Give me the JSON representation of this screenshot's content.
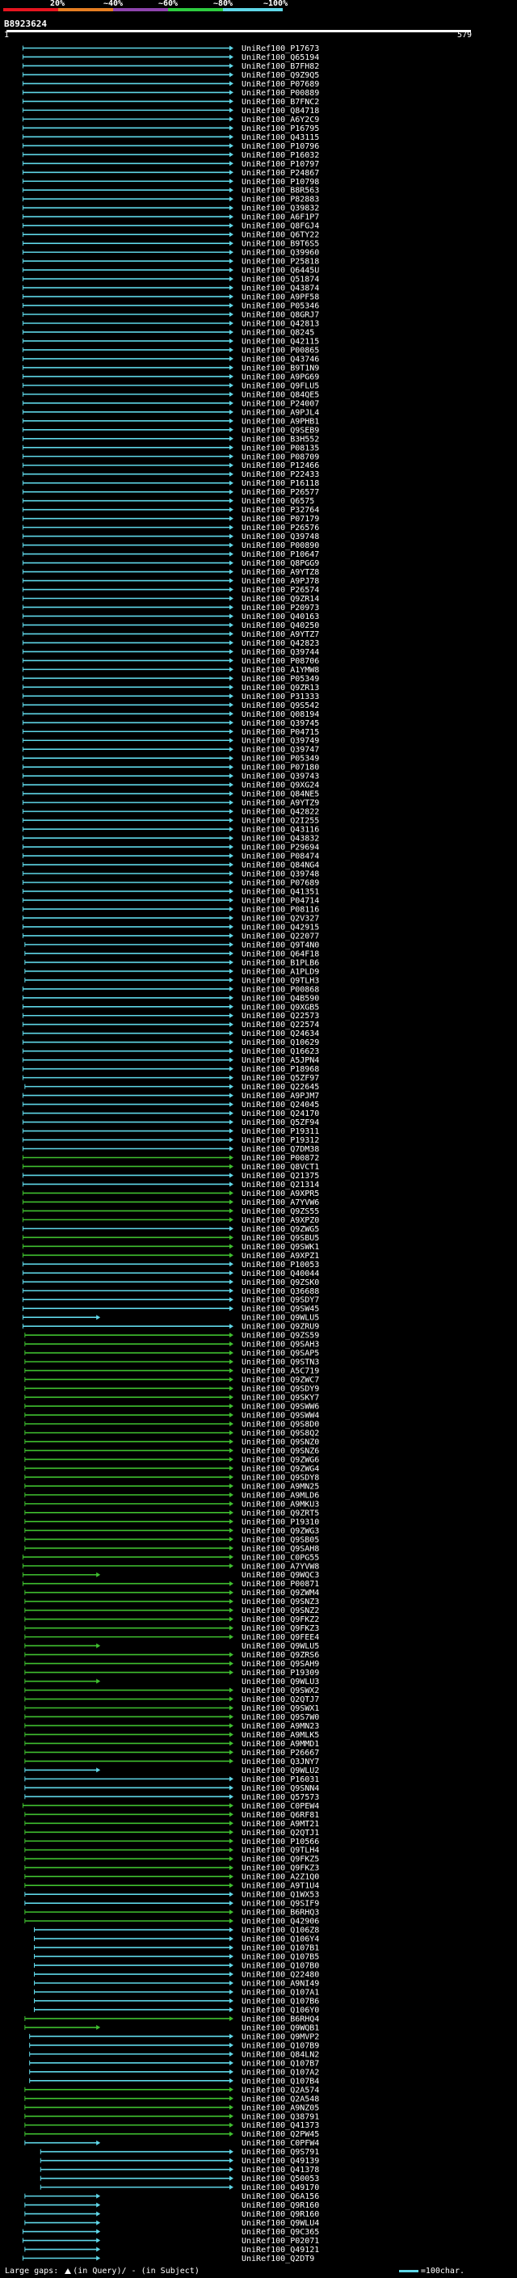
{
  "legend": {
    "marks": [
      "20%",
      "~40%",
      "~60%",
      "~80%",
      "~100%"
    ],
    "colors": [
      "#e6151f",
      "#e67e22",
      "#8e44ad",
      "#2ecc40",
      "#5fd7e8"
    ]
  },
  "query": {
    "id": "B8923624",
    "start": "1",
    "end": "579"
  },
  "footer": {
    "large_gaps_label": "Large gaps:",
    "in_query": "(in Query)",
    "in_subject": "(in Subject)",
    "scale": "=100char."
  },
  "hit_colors": {
    "cyan": "#5fd7e8",
    "green": "#3fbf2f",
    "gapmark": "#cc4444"
  },
  "hits": [
    [
      "UniRef100_P17673",
      43,
      579,
      "c"
    ],
    [
      "UniRef100_Q65194",
      43,
      579,
      "c"
    ],
    [
      "UniRef100_B7FH82",
      43,
      579,
      "c"
    ],
    [
      "UniRef100_Q9Z9Q5",
      43,
      579,
      "c"
    ],
    [
      "UniRef100_P07689",
      43,
      579,
      "c"
    ],
    [
      "UniRef100_P00889",
      43,
      579,
      "c"
    ],
    [
      "UniRef100_B7FNC2",
      43,
      579,
      "c"
    ],
    [
      "UniRef100_Q84718",
      43,
      579,
      "c"
    ],
    [
      "UniRef100_A6Y2C9",
      43,
      579,
      "c"
    ],
    [
      "UniRef100_P16795",
      43,
      579,
      "c"
    ],
    [
      "UniRef100_Q43115",
      43,
      579,
      "c"
    ],
    [
      "UniRef100_P10796",
      43,
      579,
      "c"
    ],
    [
      "UniRef100_P16032",
      43,
      579,
      "c"
    ],
    [
      "UniRef100_P10797",
      43,
      579,
      "c"
    ],
    [
      "UniRef100_P24867",
      43,
      579,
      "c"
    ],
    [
      "UniRef100_P10798",
      43,
      579,
      "c"
    ],
    [
      "UniRef100_B8R563",
      43,
      579,
      "c"
    ],
    [
      "UniRef100_P82883",
      43,
      579,
      "c"
    ],
    [
      "UniRef100_Q39832",
      43,
      579,
      "c"
    ],
    [
      "UniRef100_A6F1P7",
      43,
      579,
      "c"
    ],
    [
      "UniRef100_Q8FGJ4",
      43,
      579,
      "c"
    ],
    [
      "UniRef100_Q6TY22",
      43,
      579,
      "c"
    ],
    [
      "UniRef100_B9T6S5",
      43,
      579,
      "c"
    ],
    [
      "UniRef100_Q39960",
      43,
      579,
      "c"
    ],
    [
      "UniRef100_P25818",
      43,
      579,
      "c"
    ],
    [
      "UniRef100_Q6445U",
      43,
      579,
      "c"
    ],
    [
      "UniRef100_Q51874",
      43,
      579,
      "c"
    ],
    [
      "UniRef100_Q43874",
      43,
      579,
      "c"
    ],
    [
      "UniRef100_A9PF58",
      43,
      579,
      "c"
    ],
    [
      "UniRef100_P05346",
      43,
      579,
      "c"
    ],
    [
      "UniRef100_Q8GRJ7",
      43,
      579,
      "c"
    ],
    [
      "UniRef100_Q42813",
      43,
      579,
      "c"
    ],
    [
      "UniRef100_Q8245",
      43,
      579,
      "c"
    ],
    [
      "UniRef100_Q42115",
      43,
      579,
      "c"
    ],
    [
      "UniRef100_P00865",
      43,
      579,
      "c"
    ],
    [
      "UniRef100_Q43746",
      43,
      579,
      "c"
    ],
    [
      "UniRef100_B9T1N9",
      43,
      579,
      "c"
    ],
    [
      "UniRef100_A9PG69",
      43,
      579,
      "c"
    ],
    [
      "UniRef100_Q9FLU5",
      43,
      579,
      "c"
    ],
    [
      "UniRef100_Q84QE5",
      43,
      579,
      "c"
    ],
    [
      "UniRef100_P24007",
      43,
      579,
      "c"
    ],
    [
      "UniRef100_A9PJL4",
      43,
      579,
      "c"
    ],
    [
      "UniRef100_A9PHB1",
      43,
      579,
      "c"
    ],
    [
      "UniRef100_Q9SEB9",
      43,
      579,
      "c"
    ],
    [
      "UniRef100_B3H552",
      43,
      579,
      "c"
    ],
    [
      "UniRef100_P08135",
      43,
      579,
      "c"
    ],
    [
      "UniRef100_P08709",
      43,
      579,
      "c"
    ],
    [
      "UniRef100_P12466",
      43,
      579,
      "c"
    ],
    [
      "UniRef100_P22433",
      43,
      579,
      "c"
    ],
    [
      "UniRef100_P16118",
      43,
      579,
      "c"
    ],
    [
      "UniRef100_P26577",
      43,
      579,
      "c"
    ],
    [
      "UniRef100_Q6575",
      43,
      579,
      "c"
    ],
    [
      "UniRef100_P32764",
      43,
      579,
      "c"
    ],
    [
      "UniRef100_P07179",
      43,
      579,
      "c"
    ],
    [
      "UniRef100_P26576",
      43,
      579,
      "c"
    ],
    [
      "UniRef100_Q39748",
      43,
      579,
      "c"
    ],
    [
      "UniRef100_P00890",
      43,
      579,
      "c"
    ],
    [
      "UniRef100_P10647",
      43,
      579,
      "c"
    ],
    [
      "UniRef100_Q8PGG9",
      43,
      579,
      "c"
    ],
    [
      "UniRef100_A9YTZ8",
      43,
      579,
      "c"
    ],
    [
      "UniRef100_A9PJ78",
      43,
      579,
      "c"
    ],
    [
      "UniRef100_P26574",
      43,
      579,
      "c"
    ],
    [
      "UniRef100_Q9ZR14",
      43,
      579,
      "c"
    ],
    [
      "UniRef100_P20973",
      43,
      579,
      "c"
    ],
    [
      "UniRef100_Q40163",
      43,
      579,
      "c"
    ],
    [
      "UniRef100_Q40250",
      43,
      579,
      "c"
    ],
    [
      "UniRef100_A9YTZ7",
      43,
      579,
      "c"
    ],
    [
      "UniRef100_Q42823",
      43,
      579,
      "c"
    ],
    [
      "UniRef100_Q39744",
      43,
      579,
      "c"
    ],
    [
      "UniRef100_P08706",
      43,
      579,
      "c"
    ],
    [
      "UniRef100_A1YMW8",
      43,
      579,
      "c"
    ],
    [
      "UniRef100_P05349",
      43,
      579,
      "c"
    ],
    [
      "UniRef100_Q9ZR13",
      43,
      579,
      "c"
    ],
    [
      "UniRef100_P31333",
      43,
      579,
      "c"
    ],
    [
      "UniRef100_Q9S542",
      43,
      579,
      "c"
    ],
    [
      "UniRef100_Q08194",
      43,
      579,
      "c"
    ],
    [
      "UniRef100_Q39745",
      43,
      579,
      "c"
    ],
    [
      "UniRef100_P04715",
      43,
      579,
      "c"
    ],
    [
      "UniRef100_Q39749",
      43,
      579,
      "c"
    ],
    [
      "UniRef100_Q39747",
      43,
      579,
      "c"
    ],
    [
      "UniRef100_P05349",
      43,
      579,
      "c"
    ],
    [
      "UniRef100_P07180",
      43,
      579,
      "c"
    ],
    [
      "UniRef100_Q39743",
      43,
      579,
      "c"
    ],
    [
      "UniRef100_Q9XG24",
      43,
      579,
      "c"
    ],
    [
      "UniRef100_Q84NE5",
      43,
      579,
      "c"
    ],
    [
      "UniRef100_A9YTZ9",
      43,
      579,
      "c"
    ],
    [
      "UniRef100_Q42822",
      43,
      579,
      "c"
    ],
    [
      "UniRef100_Q2I255",
      43,
      579,
      "c"
    ],
    [
      "UniRef100_Q43116",
      43,
      579,
      "c"
    ],
    [
      "UniRef100_Q43832",
      43,
      579,
      "c"
    ],
    [
      "UniRef100_P29694",
      43,
      579,
      "c"
    ],
    [
      "UniRef100_P08474",
      43,
      579,
      "c"
    ],
    [
      "UniRef100_Q84NG4",
      43,
      579,
      "c"
    ],
    [
      "UniRef100_Q39748",
      43,
      579,
      "c"
    ],
    [
      "UniRef100_P07689",
      43,
      579,
      "c"
    ],
    [
      "UniRef100_Q41351",
      43,
      579,
      "c"
    ],
    [
      "UniRef100_P04714",
      43,
      579,
      "c"
    ],
    [
      "UniRef100_P08116",
      43,
      579,
      "c"
    ],
    [
      "UniRef100_Q2V327",
      43,
      579,
      "c"
    ],
    [
      "UniRef100_Q42915",
      43,
      579,
      "c"
    ],
    [
      "UniRef100_Q22077",
      43,
      579,
      "c"
    ],
    [
      "UniRef100_Q9T4N0",
      48,
      579,
      "c"
    ],
    [
      "UniRef100_Q64F18",
      48,
      579,
      "c"
    ],
    [
      "UniRef100_B1PLB6",
      48,
      579,
      "c"
    ],
    [
      "UniRef100_A1PLD9",
      48,
      579,
      "c"
    ],
    [
      "UniRef100_Q9TLH3",
      48,
      579,
      "c"
    ],
    [
      "UniRef100_P00868",
      43,
      579,
      "c"
    ],
    [
      "UniRef100_Q4B590",
      43,
      579,
      "c"
    ],
    [
      "UniRef100_Q9XGB5",
      43,
      579,
      "c"
    ],
    [
      "UniRef100_Q22573",
      43,
      579,
      "c"
    ],
    [
      "UniRef100_Q22574",
      43,
      579,
      "c"
    ],
    [
      "UniRef100_Q24634",
      43,
      579,
      "c"
    ],
    [
      "UniRef100_Q10629",
      43,
      579,
      "c"
    ],
    [
      "UniRef100_Q16623",
      43,
      579,
      "c"
    ],
    [
      "UniRef100_A5JPN4",
      43,
      579,
      "c"
    ],
    [
      "UniRef100_P18968",
      43,
      579,
      "c"
    ],
    [
      "UniRef100_Q5ZF97",
      43,
      579,
      "c"
    ],
    [
      "UniRef100_Q22645",
      48,
      579,
      "c"
    ],
    [
      "UniRef100_A9PJM7",
      43,
      579,
      "c"
    ],
    [
      "UniRef100_Q24045",
      43,
      579,
      "c"
    ],
    [
      "UniRef100_Q24170",
      43,
      579,
      "c"
    ],
    [
      "UniRef100_Q5ZF94",
      43,
      579,
      "c"
    ],
    [
      "UniRef100_P19311",
      43,
      579,
      "c"
    ],
    [
      "UniRef100_P19312",
      43,
      579,
      "c"
    ],
    [
      "UniRef100_Q7DM38",
      43,
      579,
      "c"
    ],
    [
      "UniRef100_P00872",
      43,
      579,
      "g"
    ],
    [
      "UniRef100_Q8VCT1",
      43,
      579,
      "g"
    ],
    [
      "UniRef100_Q21375",
      43,
      579,
      "c"
    ],
    [
      "UniRef100_Q21314",
      43,
      579,
      "c"
    ],
    [
      "UniRef100_A9XPR5",
      43,
      579,
      "g"
    ],
    [
      "UniRef100_A7YVW6",
      43,
      579,
      "g"
    ],
    [
      "UniRef100_Q9ZS55",
      43,
      579,
      "g"
    ],
    [
      "UniRef100_A9XPZ0",
      43,
      579,
      "g"
    ],
    [
      "UniRef100_Q9ZWG5",
      43,
      579,
      "c"
    ],
    [
      "UniRef100_Q9SBU5",
      43,
      579,
      "g"
    ],
    [
      "UniRef100_Q9SWK1",
      43,
      579,
      "g"
    ],
    [
      "UniRef100_A9XPZ1",
      43,
      579,
      "g"
    ],
    [
      "UniRef100_P10053",
      43,
      579,
      "c"
    ],
    [
      "UniRef100_Q40044",
      43,
      579,
      "c"
    ],
    [
      "UniRef100_Q9ZSK0",
      43,
      579,
      "c"
    ],
    [
      "UniRef100_Q36688",
      43,
      579,
      "c"
    ],
    [
      "UniRef100_Q9SDY7",
      43,
      579,
      "c"
    ],
    [
      "UniRef100_Q9SW45",
      43,
      579,
      "c"
    ],
    [
      "UniRef100_Q9WLU5",
      43,
      240,
      "c"
    ],
    [
      "UniRef100_Q9ZRU9",
      43,
      579,
      "c"
    ],
    [
      "UniRef100_Q9ZS59",
      48,
      579,
      "g"
    ],
    [
      "UniRef100_Q9SAH3",
      48,
      579,
      "g"
    ],
    [
      "UniRef100_Q9SAP5",
      48,
      579,
      "g"
    ],
    [
      "UniRef100_Q9STN3",
      48,
      579,
      "g"
    ],
    [
      "UniRef100_A5C719",
      48,
      579,
      "g"
    ],
    [
      "UniRef100_Q9ZWC7",
      48,
      579,
      "g"
    ],
    [
      "UniRef100_Q9SDY9",
      48,
      579,
      "g"
    ],
    [
      "UniRef100_Q9SKY7",
      48,
      579,
      "g"
    ],
    [
      "UniRef100_Q9SWW6",
      48,
      579,
      "g"
    ],
    [
      "UniRef100_Q9SWW4",
      48,
      579,
      "g"
    ],
    [
      "UniRef100_Q9S8D0",
      48,
      579,
      "g"
    ],
    [
      "UniRef100_Q9S8Q2",
      48,
      579,
      "g"
    ],
    [
      "UniRef100_Q9SNZ0",
      48,
      579,
      "g"
    ],
    [
      "UniRef100_Q9SNZ6",
      48,
      579,
      "g"
    ],
    [
      "UniRef100_Q9ZWG6",
      48,
      579,
      "g"
    ],
    [
      "UniRef100_Q9ZWG4",
      48,
      579,
      "g"
    ],
    [
      "UniRef100_Q9SDY8",
      48,
      579,
      "g"
    ],
    [
      "UniRef100_A9MN25",
      48,
      579,
      "g"
    ],
    [
      "UniRef100_A9MLD6",
      48,
      579,
      "g"
    ],
    [
      "UniRef100_A9MKU3",
      48,
      579,
      "g"
    ],
    [
      "UniRef100_Q9ZRT5",
      48,
      579,
      "g"
    ],
    [
      "UniRef100_P19310",
      48,
      579,
      "g"
    ],
    [
      "UniRef100_Q9ZWG3",
      48,
      579,
      "g"
    ],
    [
      "UniRef100_Q9SB05",
      48,
      579,
      "g"
    ],
    [
      "UniRef100_Q9SAH8",
      48,
      579,
      "g"
    ],
    [
      "UniRef100_C0PG55",
      43,
      579,
      "g"
    ],
    [
      "UniRef100_A7YVW8",
      43,
      579,
      "g"
    ],
    [
      "UniRef100_Q9WQC3",
      43,
      240,
      "g"
    ],
    [
      "UniRef100_P00871",
      43,
      579,
      "g"
    ],
    [
      "UniRef100_Q9ZWM4",
      48,
      579,
      "g"
    ],
    [
      "UniRef100_Q9SNZ3",
      48,
      579,
      "g"
    ],
    [
      "UniRef100_Q9SNZ2",
      48,
      579,
      "g"
    ],
    [
      "UniRef100_Q9FKZ2",
      48,
      579,
      "g"
    ],
    [
      "UniRef100_Q9FKZ3",
      48,
      579,
      "g"
    ],
    [
      "UniRef100_Q9FEE4",
      48,
      579,
      "g"
    ],
    [
      "UniRef100_Q9WLU5",
      48,
      240,
      "g"
    ],
    [
      "UniRef100_Q9ZRS6",
      48,
      579,
      "g"
    ],
    [
      "UniRef100_Q9SAH9",
      48,
      579,
      "g"
    ],
    [
      "UniRef100_P19309",
      48,
      579,
      "g"
    ],
    [
      "UniRef100_Q9WLU3",
      48,
      240,
      "g"
    ],
    [
      "UniRef100_Q9SWX2",
      48,
      579,
      "g"
    ],
    [
      "UniRef100_Q2QTJ7",
      48,
      579,
      "g"
    ],
    [
      "UniRef100_Q9SWX1",
      48,
      579,
      "g"
    ],
    [
      "UniRef100_Q9S7W0",
      48,
      579,
      "g"
    ],
    [
      "UniRef100_A9MN23",
      48,
      579,
      "g"
    ],
    [
      "UniRef100_A9MLK5",
      48,
      579,
      "g"
    ],
    [
      "UniRef100_A9MMD1",
      48,
      579,
      "g"
    ],
    [
      "UniRef100_P26667",
      48,
      579,
      "g"
    ],
    [
      "UniRef100_Q3JNY7",
      48,
      579,
      "g"
    ],
    [
      "UniRef100_Q9WLU2",
      48,
      240,
      "c"
    ],
    [
      "UniRef100_P16031",
      48,
      579,
      "c"
    ],
    [
      "UniRef100_Q9SNN4",
      48,
      579,
      "c"
    ],
    [
      "UniRef100_Q57573",
      48,
      579,
      "c"
    ],
    [
      "UniRef100_C0PEW4",
      43,
      579,
      "g"
    ],
    [
      "UniRef100_Q6RF81",
      48,
      579,
      "g"
    ],
    [
      "UniRef100_A9MT21",
      48,
      579,
      "g"
    ],
    [
      "UniRef100_Q2QTJ1",
      48,
      579,
      "g"
    ],
    [
      "UniRef100_P10566",
      48,
      579,
      "g"
    ],
    [
      "UniRef100_Q9TLH4",
      48,
      579,
      "g"
    ],
    [
      "UniRef100_Q9FKZ5",
      48,
      579,
      "g"
    ],
    [
      "UniRef100_Q9FKZ3",
      48,
      579,
      "g"
    ],
    [
      "UniRef100_A2Z1Q0",
      48,
      579,
      "g"
    ],
    [
      "UniRef100_A9T1U4",
      48,
      579,
      "g"
    ],
    [
      "UniRef100_Q1WX53",
      48,
      579,
      "c"
    ],
    [
      "UniRef100_Q9SIF9",
      48,
      579,
      "c"
    ],
    [
      "UniRef100_B6RHQ3",
      48,
      579,
      "g"
    ],
    [
      "UniRef100_Q42906",
      48,
      579,
      "g"
    ],
    [
      "UniRef100_Q106Z8",
      72,
      579,
      "c"
    ],
    [
      "UniRef100_Q106Y4",
      72,
      579,
      "c"
    ],
    [
      "UniRef100_Q107B1",
      72,
      579,
      "c"
    ],
    [
      "UniRef100_Q107B5",
      72,
      579,
      "c"
    ],
    [
      "UniRef100_Q107B0",
      72,
      579,
      "c"
    ],
    [
      "UniRef100_Q22480",
      72,
      579,
      "c"
    ],
    [
      "UniRef100_A9NI49",
      72,
      579,
      "c"
    ],
    [
      "UniRef100_Q107A1",
      72,
      579,
      "c"
    ],
    [
      "UniRef100_Q107B6",
      72,
      579,
      "c"
    ],
    [
      "UniRef100_Q106Y0",
      72,
      579,
      "c"
    ],
    [
      "UniRef100_B6RHQ4",
      48,
      579,
      "g"
    ],
    [
      "UniRef100_Q9WQB1",
      48,
      240,
      "g"
    ],
    [
      "UniRef100_Q9MVP2",
      60,
      579,
      "c"
    ],
    [
      "UniRef100_Q107B9",
      60,
      579,
      "c"
    ],
    [
      "UniRef100_Q84LN2",
      60,
      579,
      "c"
    ],
    [
      "UniRef100_Q107B7",
      60,
      579,
      "c"
    ],
    [
      "UniRef100_Q107A2",
      60,
      579,
      "c"
    ],
    [
      "UniRef100_Q107B4",
      60,
      579,
      "c"
    ],
    [
      "UniRef100_Q2A574",
      48,
      579,
      "g"
    ],
    [
      "UniRef100_Q2A548",
      48,
      579,
      "g"
    ],
    [
      "UniRef100_A9NZ05",
      48,
      579,
      "g"
    ],
    [
      "UniRef100_Q38791",
      48,
      579,
      "g"
    ],
    [
      "UniRef100_Q41373",
      48,
      579,
      "g"
    ],
    [
      "UniRef100_Q2PW45",
      48,
      579,
      "g"
    ],
    [
      "UniRef100_C0PFW4",
      48,
      240,
      "c"
    ],
    [
      "UniRef100_Q9S791",
      88,
      579,
      "c"
    ],
    [
      "UniRef100_Q49139",
      88,
      579,
      "c"
    ],
    [
      "UniRef100_Q41378",
      88,
      579,
      "c"
    ],
    [
      "UniRef100_Q50053",
      88,
      579,
      "c"
    ],
    [
      "UniRef100_Q49170",
      88,
      579,
      "c"
    ],
    [
      "UniRef100_Q6A156",
      48,
      240,
      "c"
    ],
    [
      "UniRef100_Q9R160",
      48,
      240,
      "c"
    ],
    [
      "UniRef100_Q9R160",
      48,
      240,
      "c"
    ],
    [
      "UniRef100_Q9WLU4",
      48,
      240,
      "c"
    ],
    [
      "UniRef100_Q9C365",
      43,
      240,
      "c"
    ],
    [
      "UniRef100_P02071",
      43,
      240,
      "c"
    ],
    [
      "UniRef100_Q49121",
      48,
      240,
      "c"
    ],
    [
      "UniRef100_Q2DT9",
      43,
      240,
      "c"
    ]
  ]
}
